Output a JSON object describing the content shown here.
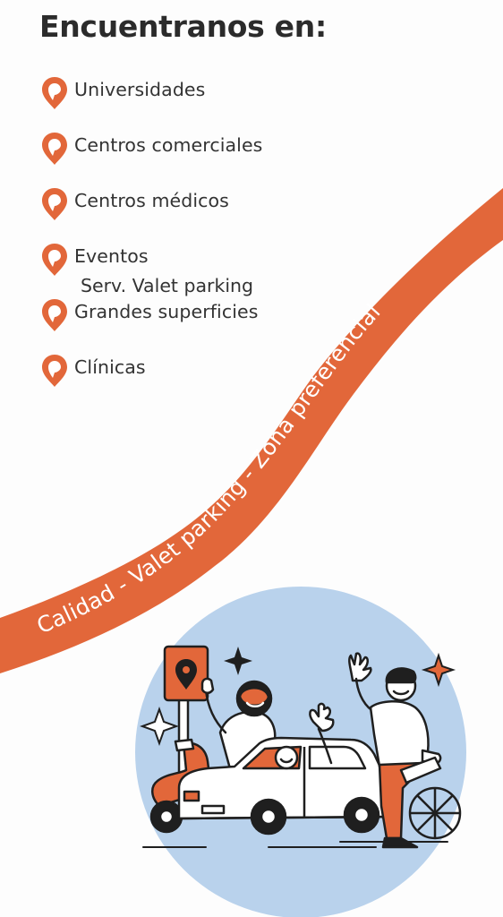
{
  "heading": "Encuentranos en:",
  "locations": [
    {
      "label": "Universidades",
      "icon": "map-pin-icon"
    },
    {
      "label": "Centros  comerciales",
      "icon": "map-pin-icon"
    },
    {
      "label": "Centros  médicos",
      "icon": "map-pin-icon"
    },
    {
      "label": "Eventos",
      "icon": "map-pin-icon"
    },
    {
      "label": "Grandes superficies",
      "icon": "map-pin-icon"
    },
    {
      "label": "Clínicas",
      "icon": "map-pin-icon"
    }
  ],
  "valet_note": "Serv. Valet parking",
  "banner_text": "Calidad - Valet parking - Zona preferencial",
  "colors": {
    "accent": "#e2673a",
    "circle": "#b9d2ec",
    "text": "#333333",
    "heading": "#2b2b2b",
    "outline": "#1f1f1f"
  }
}
